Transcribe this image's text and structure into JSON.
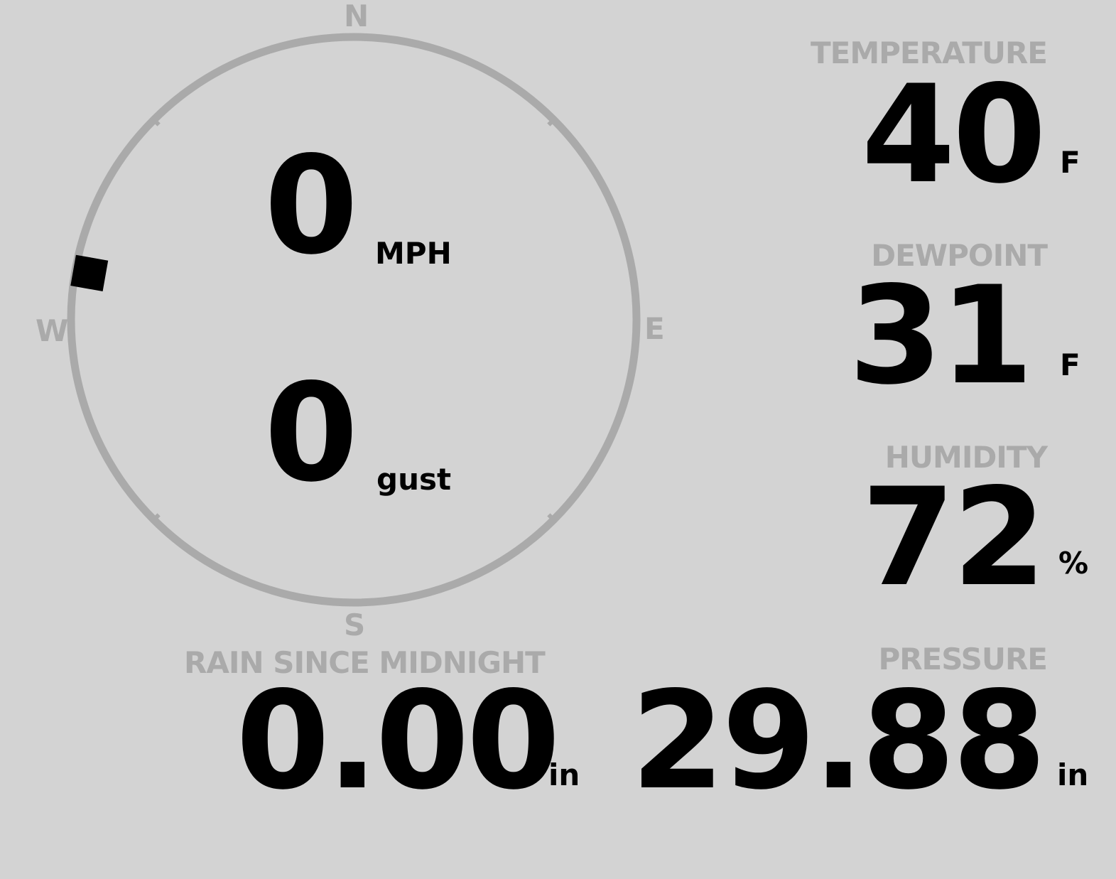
{
  "wind": {
    "speed": "0",
    "speed_unit": "MPH",
    "gust": "0",
    "gust_unit": "gust",
    "direction_degrees": 280,
    "cardinals": {
      "n": "N",
      "e": "E",
      "s": "S",
      "w": "W"
    }
  },
  "temperature": {
    "label": "TEMPERATURE",
    "value": "40",
    "unit": "F"
  },
  "dewpoint": {
    "label": "DEWPOINT",
    "value": "31",
    "unit": "F"
  },
  "humidity": {
    "label": "HUMIDITY",
    "value": "72",
    "unit": "%"
  },
  "rain": {
    "label": "RAIN SINCE MIDNIGHT",
    "value": "0.00",
    "unit": "in"
  },
  "pressure": {
    "label": "PRESSURE",
    "value": "29.88",
    "unit": "in"
  },
  "colors": {
    "background": "#d3d3d3",
    "label": "#aaaaaa",
    "value": "#000000",
    "ring": "#aaaaaa"
  }
}
